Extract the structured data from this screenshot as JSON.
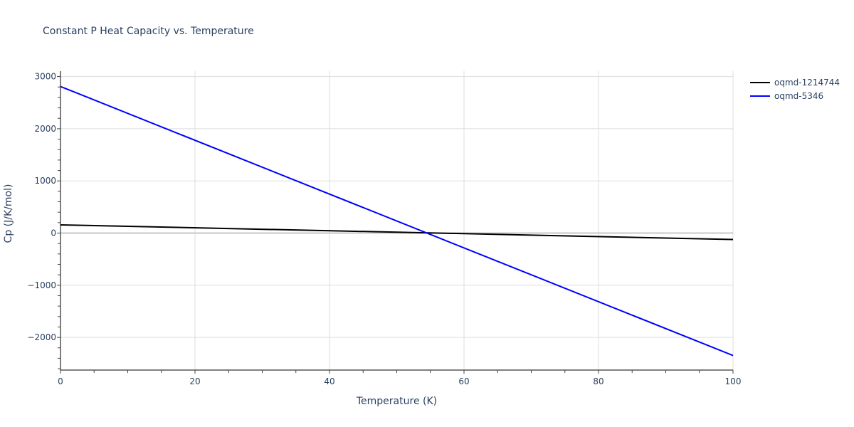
{
  "chart_data": {
    "type": "line",
    "title": "Constant P Heat Capacity vs. Temperature",
    "xlabel": "Temperature (K)",
    "ylabel": "Cp (J/K/mol)",
    "xlim": [
      0,
      100
    ],
    "ylim": [
      -2630,
      3100
    ],
    "x_ticks": [
      0,
      20,
      40,
      60,
      80,
      100
    ],
    "x_tick_labels": [
      "0",
      "20",
      "40",
      "60",
      "80",
      "100"
    ],
    "y_ticks": [
      -2000,
      -1000,
      0,
      1000,
      2000,
      3000
    ],
    "y_tick_labels": [
      "−2000",
      "−1000",
      "0",
      "1000",
      "2000",
      "3000"
    ],
    "grid": true,
    "legend_position": "right-top",
    "series": [
      {
        "name": "oqmd-1214744",
        "color": "#000000",
        "x": [
          0,
          100
        ],
        "values": [
          157,
          -123
        ]
      },
      {
        "name": "oqmd-5346",
        "color": "#0000ff",
        "x": [
          0,
          100
        ],
        "values": [
          2810,
          -2347
        ]
      }
    ]
  }
}
